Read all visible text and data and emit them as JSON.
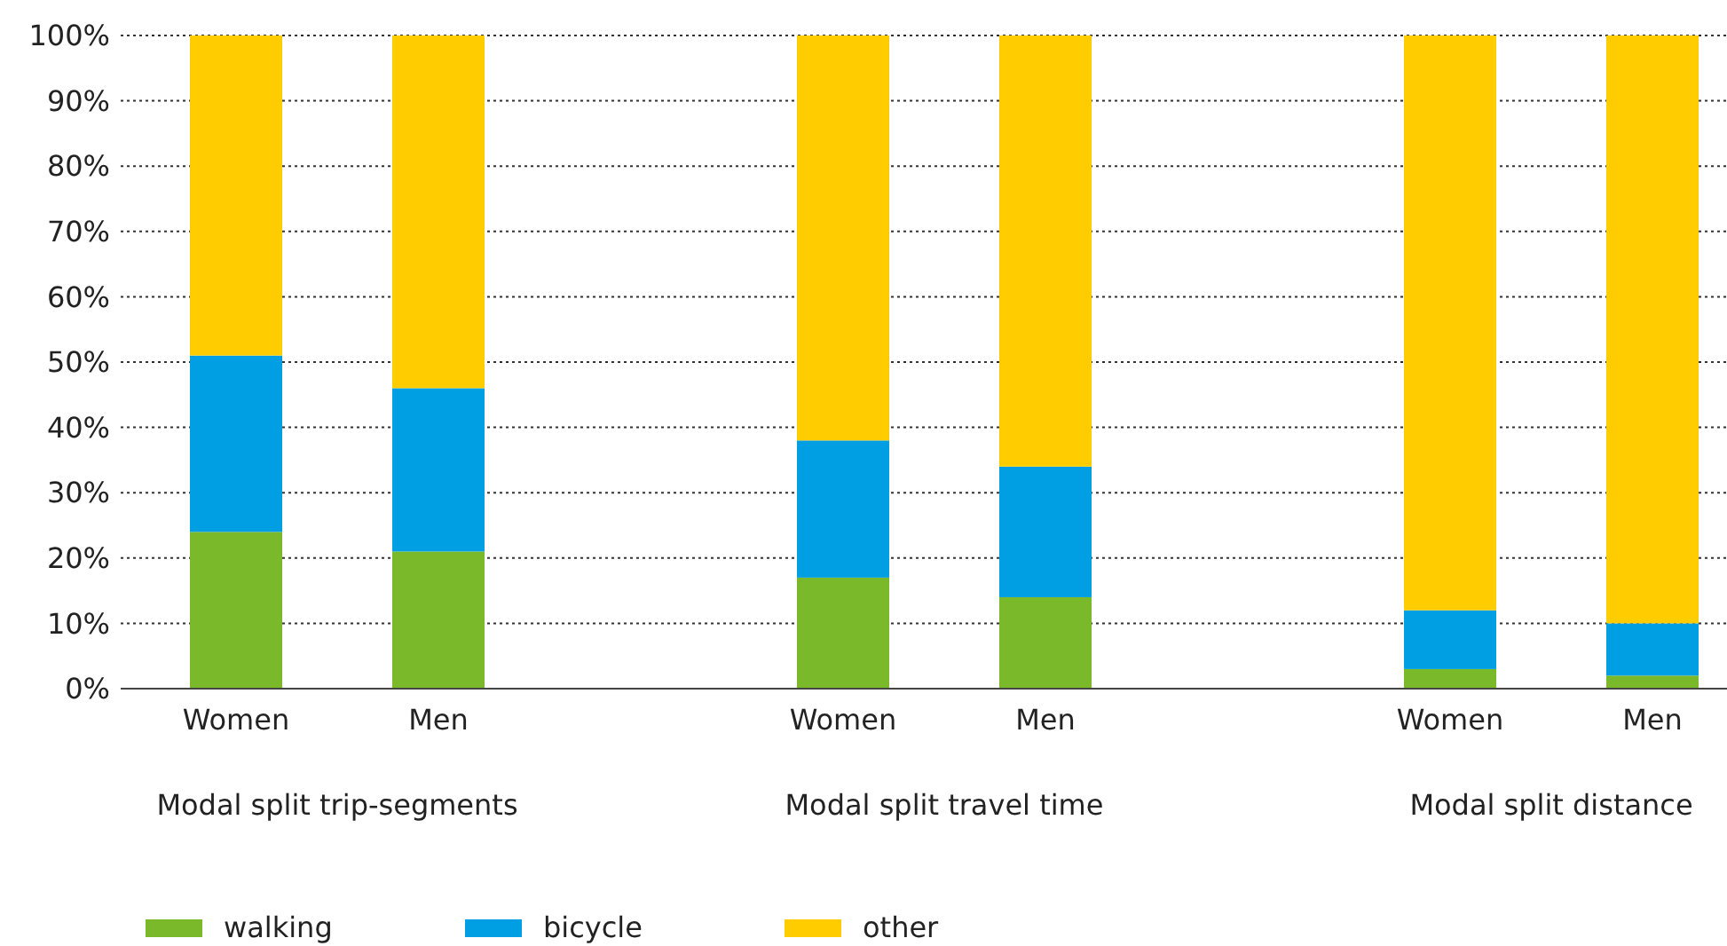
{
  "chart_data": {
    "type": "bar",
    "stacked": true,
    "categories": [
      "Women",
      "Men",
      null,
      "Women",
      "Men",
      null,
      "Women",
      "Men"
    ],
    "series": [
      {
        "name": "walking",
        "color": "#7ab929",
        "values": [
          24,
          21,
          null,
          17,
          14,
          null,
          3,
          2
        ]
      },
      {
        "name": "bicycle",
        "color": "#009fe3",
        "values": [
          27,
          25,
          null,
          21,
          20,
          null,
          9,
          8
        ]
      },
      {
        "name": "other",
        "color": "#ffcc00",
        "values": [
          49,
          54,
          null,
          62,
          66,
          null,
          88,
          90
        ]
      }
    ],
    "ylim": [
      0,
      100
    ],
    "yticks": [
      {
        "value": 0,
        "label": "0%"
      },
      {
        "value": 10,
        "label": "10%"
      },
      {
        "value": 20,
        "label": "20%"
      },
      {
        "value": 30,
        "label": "30%"
      },
      {
        "value": 40,
        "label": "40%"
      },
      {
        "value": 50,
        "label": "50%"
      },
      {
        "value": 60,
        "label": "60%"
      },
      {
        "value": 70,
        "label": "70%"
      },
      {
        "value": 80,
        "label": "80%"
      },
      {
        "value": 90,
        "label": "90%"
      },
      {
        "value": 100,
        "label": "100%"
      }
    ],
    "grid": "y",
    "legend": "bottom left",
    "annotations": [
      "Modal split trip-segments",
      "Modal split travel time",
      "Modal split distance"
    ]
  }
}
